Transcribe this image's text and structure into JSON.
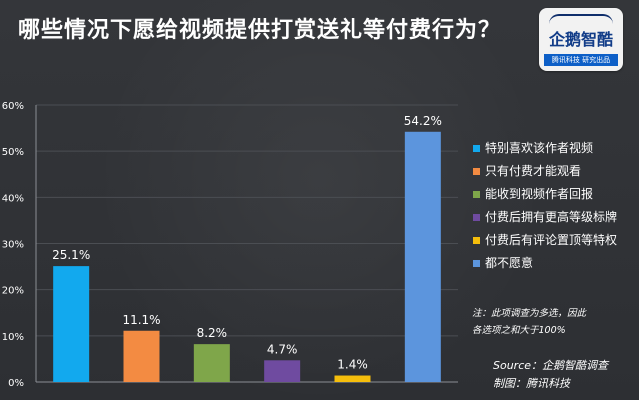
{
  "header": {
    "title": "哪些情况下愿给视频提供打赏送礼等付费行为？"
  },
  "logo": {
    "brand_text": "企鹅智酷",
    "sub_text": "腾讯科技 研究出品"
  },
  "chart_data": {
    "type": "bar",
    "title": "哪些情况下愿给视频提供打赏送礼等付费行为？",
    "categories": [
      "特别喜欢该作者视频",
      "只有付费才能观看",
      "能收到视频作者回报",
      "付费后拥有更高等级标牌",
      "付费后有评论置顶等特权",
      "都不愿意"
    ],
    "values": [
      25.1,
      11.1,
      8.2,
      4.7,
      1.4,
      54.2
    ],
    "value_labels": [
      "25.1%",
      "11.1%",
      "8.2%",
      "4.7%",
      "1.4%",
      "54.2%"
    ],
    "colors": [
      "#12a9ee",
      "#f38b42",
      "#7fa64a",
      "#6f4ba0",
      "#f5be0c",
      "#5c95dd"
    ],
    "ylim": [
      0,
      60
    ],
    "y_ticks": [
      0,
      10,
      20,
      30,
      40,
      50,
      60
    ],
    "y_tick_labels": [
      "0%",
      "10%",
      "20%",
      "30%",
      "40%",
      "50%",
      "60%"
    ],
    "grid": true,
    "legend_position": "right"
  },
  "notes": {
    "line1": "注：此项调查为多选，因此",
    "line2": "各选项之和大于100%"
  },
  "source": {
    "line1": "Source：企鹅智酷调查",
    "line2": "制图：腾讯科技"
  }
}
